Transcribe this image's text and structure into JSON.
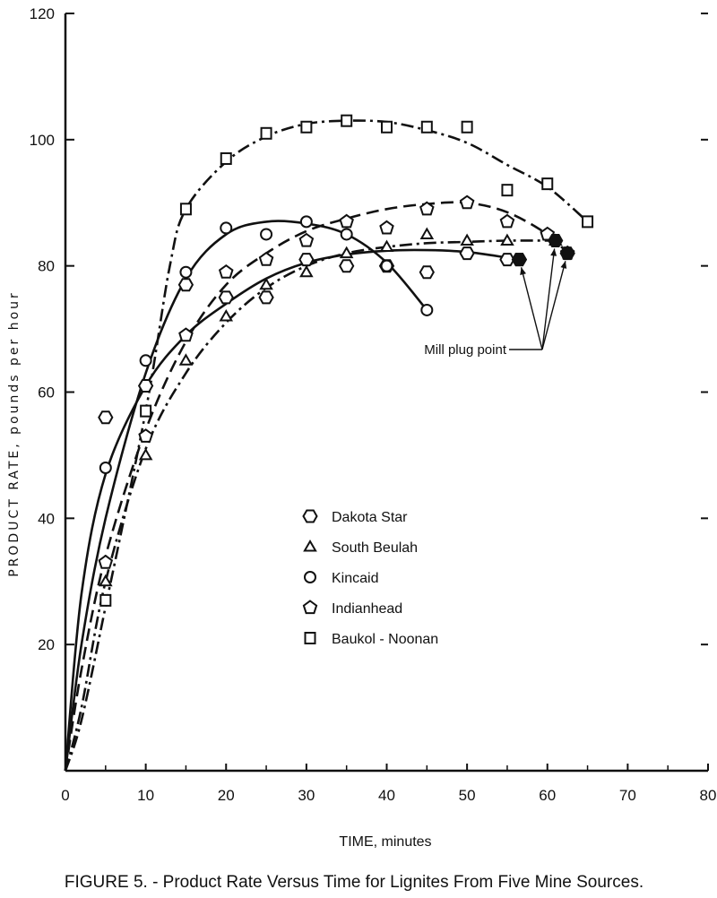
{
  "chart_data": {
    "type": "line",
    "caption": "FIGURE 5. - Product Rate Versus Time for Lignites From Five Mine Sources.",
    "xlabel": "TIME, minutes",
    "ylabel": "PRODUCT RATE, pounds per hour",
    "xlim": [
      0,
      80
    ],
    "ylim": [
      0,
      120
    ],
    "xticks": [
      0,
      10,
      20,
      30,
      40,
      50,
      60,
      70,
      80
    ],
    "yticks": [
      20,
      40,
      60,
      80,
      100,
      120
    ],
    "grid": false,
    "legend_position": "center",
    "annotation": {
      "text": "Mill plug point",
      "points": [
        [
          56.5,
          81
        ],
        [
          61,
          84
        ],
        [
          62.5,
          82
        ]
      ]
    },
    "series": [
      {
        "name": "Dakota Star",
        "marker": "hexagon",
        "line_style": "solid",
        "points": [
          [
            5,
            56
          ],
          [
            10,
            61
          ],
          [
            15,
            77
          ],
          [
            20,
            75
          ],
          [
            25,
            75
          ],
          [
            30,
            81
          ],
          [
            35,
            80
          ],
          [
            40,
            80
          ],
          [
            45,
            79
          ],
          [
            50,
            82
          ],
          [
            55,
            81
          ],
          [
            56.5,
            81
          ]
        ],
        "curve": [
          [
            0,
            0
          ],
          [
            2,
            28
          ],
          [
            5,
            47
          ],
          [
            10,
            61
          ],
          [
            15,
            69
          ],
          [
            20,
            74
          ],
          [
            25,
            78
          ],
          [
            30,
            80.5
          ],
          [
            35,
            81.8
          ],
          [
            40,
            82.4
          ],
          [
            45,
            82.5
          ],
          [
            50,
            82.2
          ],
          [
            55,
            81.3
          ],
          [
            56.5,
            81
          ]
        ]
      },
      {
        "name": "South Beulah",
        "marker": "triangle",
        "line_style": "dash-dot",
        "points": [
          [
            5,
            30
          ],
          [
            10,
            50
          ],
          [
            15,
            65
          ],
          [
            20,
            72
          ],
          [
            25,
            77
          ],
          [
            30,
            79
          ],
          [
            35,
            82
          ],
          [
            40,
            83
          ],
          [
            45,
            85
          ],
          [
            50,
            84
          ],
          [
            55,
            84
          ],
          [
            61,
            84
          ]
        ],
        "curve": [
          [
            0,
            0
          ],
          [
            2,
            10
          ],
          [
            5,
            30
          ],
          [
            10,
            51
          ],
          [
            15,
            63
          ],
          [
            20,
            71
          ],
          [
            25,
            76.5
          ],
          [
            30,
            80
          ],
          [
            35,
            82
          ],
          [
            40,
            83
          ],
          [
            45,
            83.6
          ],
          [
            50,
            83.8
          ],
          [
            55,
            84
          ],
          [
            61,
            84
          ]
        ]
      },
      {
        "name": "Kincaid",
        "marker": "circle",
        "line_style": "solid",
        "points": [
          [
            5,
            48
          ],
          [
            10,
            65
          ],
          [
            15,
            79
          ],
          [
            20,
            86
          ],
          [
            25,
            85
          ],
          [
            30,
            87
          ],
          [
            35,
            85
          ],
          [
            40,
            80
          ],
          [
            45,
            73
          ]
        ],
        "curve": [
          [
            0,
            0
          ],
          [
            2,
            20
          ],
          [
            5,
            40
          ],
          [
            10,
            63
          ],
          [
            15,
            78
          ],
          [
            20,
            85
          ],
          [
            25,
            87
          ],
          [
            30,
            86.7
          ],
          [
            35,
            85
          ],
          [
            40,
            80.5
          ],
          [
            45,
            73
          ]
        ]
      },
      {
        "name": "Indianhead",
        "marker": "pentagon",
        "line_style": "dashed",
        "points": [
          [
            5,
            33
          ],
          [
            10,
            53
          ],
          [
            15,
            69
          ],
          [
            20,
            79
          ],
          [
            25,
            81
          ],
          [
            30,
            84
          ],
          [
            35,
            87
          ],
          [
            40,
            86
          ],
          [
            45,
            89
          ],
          [
            50,
            90
          ],
          [
            55,
            87
          ],
          [
            60,
            85
          ],
          [
            62.5,
            82
          ]
        ],
        "curve": [
          [
            0,
            0
          ],
          [
            2,
            16
          ],
          [
            5,
            34
          ],
          [
            10,
            54
          ],
          [
            15,
            68
          ],
          [
            20,
            77
          ],
          [
            25,
            82
          ],
          [
            30,
            85.5
          ],
          [
            35,
            87.5
          ],
          [
            40,
            89
          ],
          [
            45,
            89.8
          ],
          [
            50,
            90
          ],
          [
            55,
            88.5
          ],
          [
            60,
            85
          ],
          [
            62.5,
            82
          ]
        ]
      },
      {
        "name": "Baukol - Noonan",
        "marker": "square",
        "line_style": "dash-dot",
        "points": [
          [
            5,
            27
          ],
          [
            10,
            57
          ],
          [
            15,
            89
          ],
          [
            20,
            97
          ],
          [
            25,
            101
          ],
          [
            30,
            102
          ],
          [
            35,
            103
          ],
          [
            40,
            102
          ],
          [
            45,
            102
          ],
          [
            50,
            102
          ],
          [
            55,
            92
          ],
          [
            60,
            93
          ],
          [
            65,
            87
          ]
        ],
        "curve": [
          [
            0,
            0
          ],
          [
            2,
            8
          ],
          [
            5,
            26
          ],
          [
            10,
            57
          ],
          [
            13,
            80
          ],
          [
            15,
            89
          ],
          [
            20,
            96.5
          ],
          [
            25,
            100.5
          ],
          [
            30,
            102.5
          ],
          [
            35,
            103
          ],
          [
            40,
            102.8
          ],
          [
            45,
            101.5
          ],
          [
            50,
            99.5
          ],
          [
            55,
            96
          ],
          [
            60,
            92.5
          ],
          [
            65,
            87
          ]
        ]
      }
    ]
  }
}
